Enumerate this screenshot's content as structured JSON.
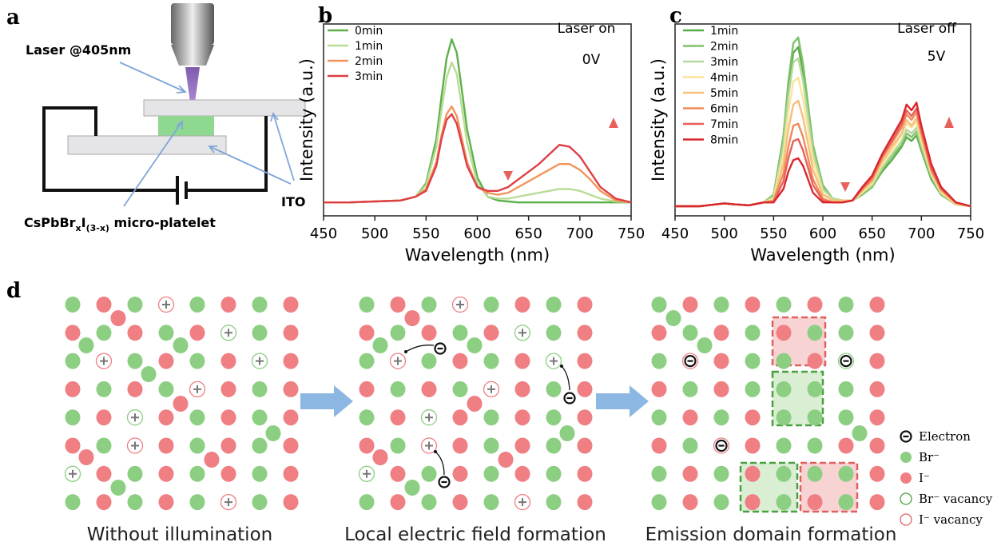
{
  "panel_labels": [
    "a",
    "b",
    "c",
    "d"
  ],
  "schematic": {
    "laser_label": "Laser @405nm",
    "ito_label": "ITO",
    "platelet_label": [
      "CsPbBr",
      "x",
      "I",
      "(3-x)",
      " micro-platelet"
    ]
  },
  "chart_data": [
    {
      "type": "line",
      "xlabel": "Wavelength (nm)",
      "ylabel": "Intensity (a.u.)",
      "annotations": [
        "Laser on",
        "0V"
      ],
      "x": [
        450,
        475,
        500,
        525,
        540,
        550,
        560,
        565,
        570,
        575,
        580,
        585,
        590,
        600,
        610,
        620,
        630,
        640,
        650,
        660,
        670,
        680,
        690,
        700,
        710,
        720,
        735,
        750
      ],
      "xlim": [
        450,
        750
      ],
      "xticks": [
        450,
        500,
        550,
        600,
        650,
        700,
        750
      ],
      "ylim": [
        0,
        1
      ],
      "series": [
        {
          "name": "0min",
          "color": "#5db04a",
          "values": [
            0.07,
            0.07,
            0.075,
            0.08,
            0.1,
            0.17,
            0.4,
            0.62,
            0.82,
            0.92,
            0.85,
            0.65,
            0.45,
            0.2,
            0.1,
            0.08,
            0.075,
            0.07,
            0.07,
            0.07,
            0.07,
            0.07,
            0.07,
            0.07,
            0.07,
            0.07,
            0.07,
            0.07
          ]
        },
        {
          "name": "1min",
          "color": "#b9dc97",
          "values": [
            0.07,
            0.07,
            0.075,
            0.08,
            0.1,
            0.16,
            0.36,
            0.55,
            0.72,
            0.8,
            0.74,
            0.56,
            0.38,
            0.17,
            0.1,
            0.09,
            0.09,
            0.1,
            0.11,
            0.12,
            0.13,
            0.14,
            0.14,
            0.13,
            0.11,
            0.09,
            0.075,
            0.07
          ]
        },
        {
          "name": "2min",
          "color": "#f2955c",
          "values": [
            0.07,
            0.07,
            0.075,
            0.08,
            0.1,
            0.14,
            0.28,
            0.42,
            0.53,
            0.57,
            0.52,
            0.4,
            0.28,
            0.15,
            0.12,
            0.11,
            0.12,
            0.15,
            0.18,
            0.21,
            0.24,
            0.27,
            0.27,
            0.24,
            0.19,
            0.13,
            0.08,
            0.07
          ]
        },
        {
          "name": "3min",
          "color": "#de3f45",
          "values": [
            0.07,
            0.07,
            0.075,
            0.08,
            0.1,
            0.13,
            0.26,
            0.4,
            0.5,
            0.53,
            0.48,
            0.37,
            0.26,
            0.15,
            0.13,
            0.13,
            0.15,
            0.19,
            0.23,
            0.27,
            0.32,
            0.37,
            0.36,
            0.31,
            0.23,
            0.15,
            0.09,
            0.07
          ]
        }
      ]
    },
    {
      "type": "line",
      "xlabel": "Wavelength (nm)",
      "ylabel": "Intensity (a.u.)",
      "annotations": [
        "Laser off",
        "5V"
      ],
      "x": [
        450,
        475,
        500,
        510,
        525,
        540,
        550,
        560,
        565,
        570,
        575,
        580,
        590,
        600,
        610,
        620,
        630,
        640,
        650,
        660,
        670,
        680,
        685,
        690,
        695,
        700,
        710,
        720,
        735,
        750
      ],
      "xlim": [
        450,
        750
      ],
      "xticks": [
        450,
        500,
        550,
        600,
        650,
        700,
        750
      ],
      "ylim": [
        0,
        1
      ],
      "series": [
        {
          "name": "1min",
          "color": "#5aad4a",
          "values": [
            0.05,
            0.05,
            0.065,
            0.06,
            0.055,
            0.07,
            0.11,
            0.4,
            0.66,
            0.85,
            0.88,
            0.75,
            0.35,
            0.15,
            0.09,
            0.08,
            0.08,
            0.11,
            0.15,
            0.23,
            0.29,
            0.36,
            0.41,
            0.39,
            0.42,
            0.34,
            0.19,
            0.11,
            0.06,
            0.05
          ]
        },
        {
          "name": "2min",
          "color": "#7fc06a",
          "values": [
            0.05,
            0.05,
            0.065,
            0.06,
            0.055,
            0.07,
            0.11,
            0.42,
            0.7,
            0.9,
            0.93,
            0.79,
            0.37,
            0.16,
            0.09,
            0.08,
            0.08,
            0.11,
            0.15,
            0.24,
            0.31,
            0.37,
            0.43,
            0.41,
            0.44,
            0.35,
            0.2,
            0.11,
            0.06,
            0.05
          ]
        },
        {
          "name": "3min",
          "color": "#b5d99c",
          "values": [
            0.05,
            0.05,
            0.065,
            0.06,
            0.055,
            0.07,
            0.1,
            0.37,
            0.62,
            0.8,
            0.82,
            0.7,
            0.33,
            0.14,
            0.09,
            0.08,
            0.08,
            0.12,
            0.16,
            0.25,
            0.32,
            0.39,
            0.45,
            0.43,
            0.46,
            0.37,
            0.21,
            0.12,
            0.06,
            0.05
          ]
        },
        {
          "name": "4min",
          "color": "#fbe49a",
          "values": [
            0.05,
            0.05,
            0.065,
            0.06,
            0.055,
            0.07,
            0.09,
            0.32,
            0.54,
            0.7,
            0.72,
            0.61,
            0.29,
            0.12,
            0.08,
            0.08,
            0.08,
            0.12,
            0.17,
            0.27,
            0.34,
            0.42,
            0.48,
            0.46,
            0.49,
            0.39,
            0.22,
            0.12,
            0.06,
            0.05
          ]
        },
        {
          "name": "5min",
          "color": "#f6bf7c",
          "values": [
            0.05,
            0.05,
            0.065,
            0.06,
            0.055,
            0.07,
            0.08,
            0.27,
            0.45,
            0.58,
            0.6,
            0.51,
            0.24,
            0.11,
            0.08,
            0.08,
            0.08,
            0.13,
            0.18,
            0.28,
            0.36,
            0.43,
            0.5,
            0.47,
            0.51,
            0.41,
            0.23,
            0.13,
            0.06,
            0.05
          ]
        },
        {
          "name": "6min",
          "color": "#ef8a5a",
          "values": [
            0.05,
            0.05,
            0.065,
            0.06,
            0.055,
            0.07,
            0.08,
            0.22,
            0.36,
            0.47,
            0.48,
            0.41,
            0.19,
            0.09,
            0.07,
            0.07,
            0.08,
            0.14,
            0.19,
            0.3,
            0.38,
            0.46,
            0.53,
            0.5,
            0.54,
            0.43,
            0.24,
            0.14,
            0.07,
            0.05
          ]
        },
        {
          "name": "7min",
          "color": "#e8605a",
          "values": [
            0.05,
            0.05,
            0.065,
            0.06,
            0.055,
            0.07,
            0.07,
            0.18,
            0.3,
            0.39,
            0.4,
            0.34,
            0.16,
            0.08,
            0.07,
            0.07,
            0.08,
            0.14,
            0.2,
            0.31,
            0.39,
            0.48,
            0.55,
            0.52,
            0.56,
            0.45,
            0.25,
            0.14,
            0.07,
            0.05
          ]
        },
        {
          "name": "8min",
          "color": "#d8282e",
          "values": [
            0.05,
            0.05,
            0.065,
            0.06,
            0.055,
            0.07,
            0.07,
            0.14,
            0.23,
            0.29,
            0.3,
            0.26,
            0.12,
            0.07,
            0.07,
            0.07,
            0.08,
            0.15,
            0.21,
            0.32,
            0.41,
            0.5,
            0.58,
            0.55,
            0.59,
            0.47,
            0.27,
            0.15,
            0.07,
            0.05
          ]
        }
      ]
    }
  ],
  "diagram": {
    "captions": [
      "Without illumination",
      "Local electric field formation",
      "Emission domain formation"
    ],
    "legend": [
      "Electron",
      "Br⁻",
      "I⁻",
      "Br⁻ vacancy",
      "I⁻ vacancy"
    ]
  }
}
